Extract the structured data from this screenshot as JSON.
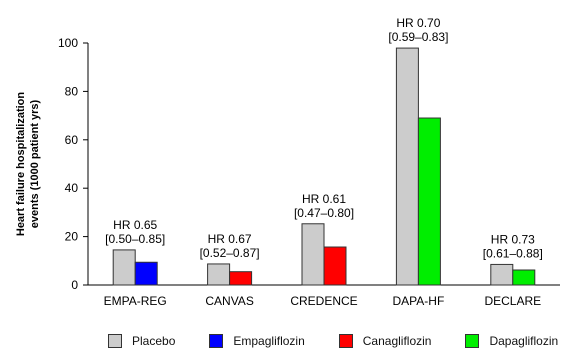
{
  "chart_data": {
    "type": "bar",
    "title": "",
    "ylabel_line1": "Heart failure hospitalization",
    "ylabel_line2": "events (1000 patient  yrs)",
    "ylim": [
      0,
      100
    ],
    "yticks": [
      "0",
      "20",
      "40",
      "60",
      "80",
      "100"
    ],
    "grid": false,
    "legend_position": "bottom",
    "categories": [
      "EMPA-REG",
      "CANVAS",
      "CREDENCE",
      "DAPA-HF",
      "DECLARE"
    ],
    "series": [
      {
        "name": "Placebo",
        "color": "#cccccc"
      },
      {
        "name": "Empagliflozin",
        "color": "#0000ff"
      },
      {
        "name": "Canagliflozin",
        "color": "#ff0000"
      },
      {
        "name": "Dapagliflozin",
        "color": "#00ee00"
      }
    ],
    "groups": [
      {
        "category": "EMPA-REG",
        "placebo": 14.5,
        "drug": 9.4,
        "drug_series": "Empagliflozin",
        "hr": "HR 0.65",
        "ci": "[0.50–0.85]"
      },
      {
        "category": "CANVAS",
        "placebo": 8.7,
        "drug": 5.5,
        "drug_series": "Canagliflozin",
        "hr": "HR 0.67",
        "ci": "[0.52–0.87]"
      },
      {
        "category": "CREDENCE",
        "placebo": 25.3,
        "drug": 15.7,
        "drug_series": "Canagliflozin",
        "hr": "HR 0.61",
        "ci": "[0.47–0.80]"
      },
      {
        "category": "DAPA-HF",
        "placebo": 97.9,
        "drug": 69.0,
        "drug_series": "Dapagliflozin",
        "hr": "HR 0.70",
        "ci": "[0.59–0.83]"
      },
      {
        "category": "DECLARE",
        "placebo": 8.5,
        "drug": 6.2,
        "drug_series": "Dapagliflozin",
        "hr": "HR 0.73",
        "ci": "[0.61–0.88]"
      }
    ]
  }
}
